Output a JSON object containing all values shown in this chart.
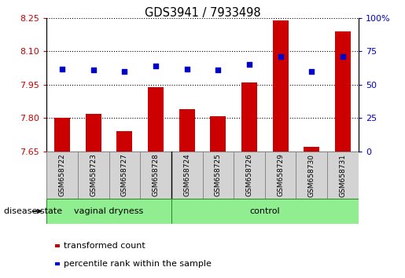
{
  "title": "GDS3941 / 7933498",
  "samples": [
    "GSM658722",
    "GSM658723",
    "GSM658727",
    "GSM658728",
    "GSM658724",
    "GSM658725",
    "GSM658726",
    "GSM658729",
    "GSM658730",
    "GSM658731"
  ],
  "transformed_count": [
    7.8,
    7.82,
    7.74,
    7.94,
    7.84,
    7.81,
    7.96,
    8.24,
    7.67,
    8.19
  ],
  "percentile_rank": [
    62,
    61,
    60,
    64,
    62,
    61,
    65,
    71,
    60,
    71
  ],
  "bar_color": "#cc0000",
  "dot_color": "#0000cc",
  "ylim_left": [
    7.65,
    8.25
  ],
  "ylim_right": [
    0,
    100
  ],
  "yticks_left": [
    7.65,
    7.8,
    7.95,
    8.1,
    8.25
  ],
  "yticks_right": [
    0,
    25,
    50,
    75,
    100
  ],
  "ytick_labels_right": [
    "0",
    "25",
    "50",
    "75",
    "100%"
  ],
  "grid_color": "#000000",
  "legend_items": [
    "transformed count",
    "percentile rank within the sample"
  ],
  "disease_state_label": "disease state",
  "vaginal_dryness_label": "vaginal dryness",
  "control_label": "control",
  "vaginal_dryness_count": 4,
  "control_count": 6,
  "group_fill": "#90EE90",
  "group_edge": "#228B22",
  "label_fill": "#d3d3d3",
  "label_edge": "#888888"
}
